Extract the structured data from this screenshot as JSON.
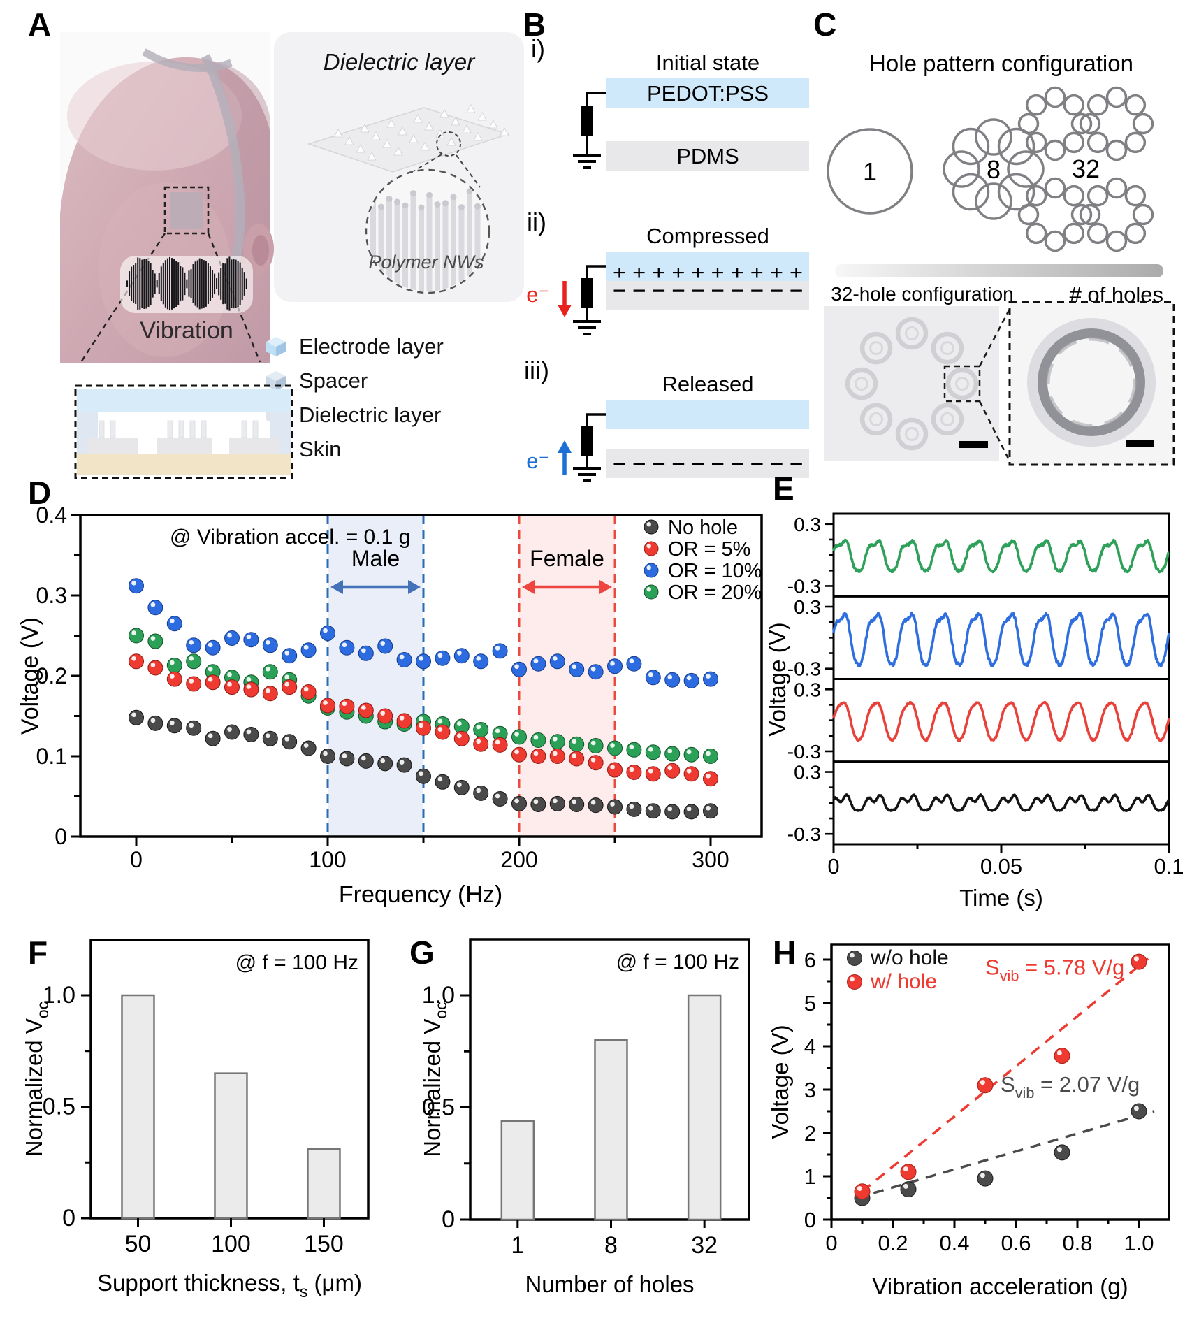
{
  "figure": {
    "panels": {
      "a": "A",
      "b": "B",
      "c": "C",
      "d": "D",
      "e": "E",
      "f": "F",
      "g": "G",
      "h": "H"
    }
  },
  "panel_a": {
    "vibration_label": "Vibration",
    "inset_title": "Dielectric layer",
    "inset_caption": "Polymer NWs",
    "legend": [
      {
        "label": "Electrode layer",
        "base": "#bfdff5",
        "top": "#ddeffb",
        "side": "#9fc6e4"
      },
      {
        "label": "Spacer",
        "base": "#ccd9e8",
        "top": "#e3ebf3",
        "side": "#b0c2d6"
      },
      {
        "label": "Dielectric layer",
        "base": "#e3e3e7",
        "top": "#f1f1f3",
        "side": "#c9c9cf"
      },
      {
        "label": "Skin",
        "base": "#e9d8bb",
        "top": "#f4e8d0",
        "side": "#d5bf9d"
      }
    ]
  },
  "panel_b": {
    "steps": {
      "i": {
        "numeral": "i)",
        "title": "Initial state",
        "top_layer": "PEDOT:PSS",
        "bottom_layer": "PDMS"
      },
      "ii": {
        "numeral": "ii)",
        "title": "Compressed",
        "electron": "e⁻",
        "plus_row": "+ + + + + + + + + +",
        "minus_row": "− − − − − − − − − −"
      },
      "iii": {
        "numeral": "iii)",
        "title": "Released",
        "electron": "e⁻",
        "minus_row": "− − − − − − − − − −"
      }
    },
    "colors": {
      "pedot": "#cfe9fa",
      "pdms": "#e8e8ea",
      "electron_down": "#e8231d",
      "electron_up": "#1b6fd6"
    }
  },
  "panel_c": {
    "title": "Hole pattern configuration",
    "patterns": [
      {
        "label": "1",
        "holes": 1
      },
      {
        "label": "8",
        "holes": 8
      },
      {
        "label": "32",
        "holes": 32
      }
    ],
    "gradient_label": "# of holes",
    "micro_label": "32-hole configuration"
  },
  "chart_data": [
    {
      "id": "D",
      "type": "scatter",
      "annotation": "@ Vibration accel. = 0.1 g",
      "xlabel": "Frequency (Hz)",
      "ylabel": "Voltage (V)",
      "xlim": [
        0,
        300
      ],
      "ylim": [
        0,
        0.4
      ],
      "xticks": [
        0,
        100,
        200,
        300
      ],
      "yticks": [
        "0",
        "0.1",
        "0.2",
        "0.3",
        "0.4"
      ],
      "x_start": 0,
      "x_step": 10,
      "regions": [
        {
          "label": "Male",
          "x_range": [
            100,
            150
          ],
          "fill": "#e9eef8",
          "line_color": "#2a6cb3",
          "arrow_color": "#4472b8"
        },
        {
          "label": "Female",
          "x_range": [
            200,
            250
          ],
          "fill": "#fdeceb",
          "line_color": "#ea4b41",
          "arrow_color": "#ee4540"
        }
      ],
      "series": [
        {
          "name": "No hole",
          "color": "#4a4a4a",
          "dark": "#151515",
          "values": [
            0.148,
            0.141,
            0.138,
            0.135,
            0.122,
            0.13,
            0.127,
            0.122,
            0.118,
            0.11,
            0.1,
            0.097,
            0.094,
            0.091,
            0.089,
            0.075,
            0.068,
            0.061,
            0.054,
            0.047,
            0.041,
            0.04,
            0.041,
            0.04,
            0.039,
            0.037,
            0.034,
            0.032,
            0.031,
            0.031,
            0.032
          ]
        },
        {
          "name": "OR = 5%",
          "color": "#ee3a31",
          "dark": "#8f1b15",
          "values": [
            0.218,
            0.21,
            0.196,
            0.19,
            0.192,
            0.186,
            0.183,
            0.178,
            0.186,
            0.18,
            0.163,
            0.162,
            0.157,
            0.15,
            0.144,
            0.135,
            0.13,
            0.122,
            0.115,
            0.114,
            0.102,
            0.1,
            0.1,
            0.097,
            0.092,
            0.083,
            0.08,
            0.078,
            0.082,
            0.078,
            0.072
          ]
        },
        {
          "name": "OR = 10%",
          "color": "#2d6ce0",
          "dark": "#153a8a",
          "values": [
            0.312,
            0.285,
            0.265,
            0.238,
            0.235,
            0.247,
            0.245,
            0.238,
            0.225,
            0.232,
            0.253,
            0.235,
            0.228,
            0.237,
            0.22,
            0.218,
            0.222,
            0.225,
            0.218,
            0.231,
            0.208,
            0.215,
            0.218,
            0.208,
            0.205,
            0.212,
            0.215,
            0.198,
            0.195,
            0.194,
            0.196
          ]
        },
        {
          "name": "OR = 20%",
          "color": "#2ba157",
          "dark": "#14512b",
          "values": [
            0.25,
            0.243,
            0.213,
            0.218,
            0.205,
            0.198,
            0.192,
            0.205,
            0.195,
            0.175,
            0.16,
            0.155,
            0.15,
            0.143,
            0.14,
            0.143,
            0.14,
            0.137,
            0.133,
            0.128,
            0.124,
            0.12,
            0.118,
            0.115,
            0.113,
            0.11,
            0.108,
            0.105,
            0.103,
            0.102,
            0.1
          ]
        }
      ]
    },
    {
      "id": "E",
      "type": "line",
      "xlabel": "Time (s)",
      "ylabel": "Voltage (V)",
      "xlim": [
        0,
        0.1
      ],
      "xticks": [
        "0",
        "0.05",
        "0.1"
      ],
      "subpanel_ylim": [
        -0.4,
        0.4
      ],
      "ytick_top": "0.3",
      "ytick_bottom": "-0.3",
      "traces": [
        {
          "name": "OR = 20%",
          "color": "#2fa05a",
          "amplitude_v": 0.145,
          "frequency_hz": 100,
          "harmonic_v": 0.028,
          "noise_v": 0.013,
          "seed": 3
        },
        {
          "name": "OR = 10%",
          "color": "#2e6ede",
          "amplitude_v": 0.25,
          "frequency_hz": 100,
          "harmonic_v": 0.04,
          "noise_v": 0.015,
          "seed": 5
        },
        {
          "name": "OR = 5%",
          "color": "#e8413a",
          "amplitude_v": 0.185,
          "frequency_hz": 100,
          "harmonic_v": 0.015,
          "noise_v": 0.008,
          "seed": 7
        },
        {
          "name": "No hole",
          "color": "#141414",
          "amplitude_v": 0.06,
          "frequency_hz": 100,
          "harmonic_v": 0.03,
          "noise_v": 0.006,
          "seed": 9
        }
      ]
    },
    {
      "id": "F",
      "type": "bar",
      "annotation": "@ f = 100 Hz",
      "categories": [
        "50",
        "100",
        "150"
      ],
      "values": [
        1.0,
        0.65,
        0.31
      ],
      "yticks": [
        "0",
        "0.5",
        "1.0"
      ],
      "ylim": [
        0,
        1.25
      ],
      "ylabel_parts": [
        [
          "Normalized V",
          0
        ],
        [
          "oc",
          1
        ]
      ],
      "xlabel_parts": [
        [
          "Support thickness, t",
          0
        ],
        [
          "s",
          1
        ],
        [
          " (μm)",
          0
        ]
      ],
      "bar_fill": "#ebebeb",
      "bar_stroke": "#767676"
    },
    {
      "id": "G",
      "type": "bar",
      "annotation": "@ f = 100 Hz",
      "categories": [
        "1",
        "8",
        "32"
      ],
      "values": [
        0.44,
        0.8,
        1.0
      ],
      "yticks": [
        "0",
        "0.5",
        "1.0"
      ],
      "ylim": [
        0,
        1.25
      ],
      "ylabel_parts": [
        [
          "Normalized V",
          0
        ],
        [
          "oc",
          1
        ]
      ],
      "xlabel_parts": [
        [
          "Number of holes",
          0
        ]
      ],
      "bar_fill": "#ebebeb",
      "bar_stroke": "#767676"
    },
    {
      "id": "H",
      "type": "scatter_fit",
      "xlabel": "Vibration acceleration (g)",
      "ylabel": "Voltage (V)",
      "xlim": [
        0,
        1.1
      ],
      "ylim": [
        0,
        6.35
      ],
      "xticks": [
        "0",
        "0.2",
        "0.4",
        "0.6",
        "0.8",
        "1.0"
      ],
      "yticks": [
        "0",
        "1",
        "2",
        "3",
        "4",
        "5",
        "6"
      ],
      "series": [
        {
          "name": "w/o hole",
          "color": "#4b4b4b",
          "dark": "#1d1d1d",
          "x": [
            0.1,
            0.25,
            0.5,
            0.75,
            1.0
          ],
          "y": [
            0.5,
            0.7,
            0.95,
            1.55,
            2.5
          ],
          "fit_slope": 2.07,
          "fit_intercept": 0.33,
          "fit_range": [
            0.08,
            1.05
          ],
          "label_parts": [
            [
              "S",
              0
            ],
            [
              "vib",
              1
            ],
            [
              " = 2.07 V/g",
              0
            ]
          ],
          "label_pos": [
            0.55,
            2.95
          ]
        },
        {
          "name": "w/ hole",
          "color": "#ee3a31",
          "dark": "#a31f18",
          "x": [
            0.1,
            0.25,
            0.5,
            0.75,
            1.0
          ],
          "y": [
            0.65,
            1.1,
            3.1,
            3.78,
            5.95
          ],
          "fit_slope": 5.78,
          "fit_intercept": 0.07,
          "fit_range": [
            0.1,
            1.03
          ],
          "label_parts": [
            [
              "S",
              0
            ],
            [
              "vib",
              1
            ],
            [
              " = 5.78 V/g",
              0
            ]
          ],
          "label_pos": [
            0.5,
            5.65
          ]
        }
      ]
    }
  ]
}
